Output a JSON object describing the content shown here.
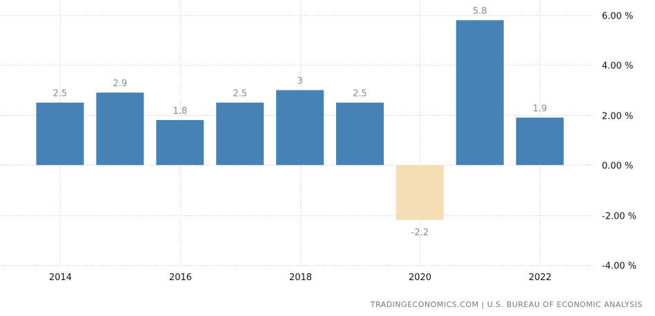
{
  "chart_data": {
    "type": "bar",
    "years": [
      2014,
      2015,
      2016,
      2017,
      2018,
      2019,
      2020,
      2021,
      2022
    ],
    "values": [
      2.5,
      2.9,
      1.8,
      2.5,
      3,
      2.5,
      -2.2,
      5.8,
      1.9
    ],
    "value_labels": [
      "2.5",
      "2.9",
      "1.8",
      "2.5",
      "3",
      "2.5",
      "-2.2",
      "5.8",
      "1.9"
    ],
    "x_tick_labels": [
      "2014",
      "2016",
      "2018",
      "2020",
      "2022"
    ],
    "y_tick_labels": [
      "6.00 %",
      "4.00 %",
      "2.00 %",
      "0.00 %",
      "-2.00 %",
      "-4.00 %"
    ],
    "y_ticks": [
      6,
      4,
      2,
      0,
      -2,
      -4
    ],
    "ylim": [
      -4,
      6
    ],
    "grid": true,
    "colors": {
      "positive": "#4682b4",
      "negative": "#f5deb3"
    }
  },
  "source": "TRADINGECONOMICS.COM | U.S. BUREAU OF ECONOMIC ANALYSIS"
}
